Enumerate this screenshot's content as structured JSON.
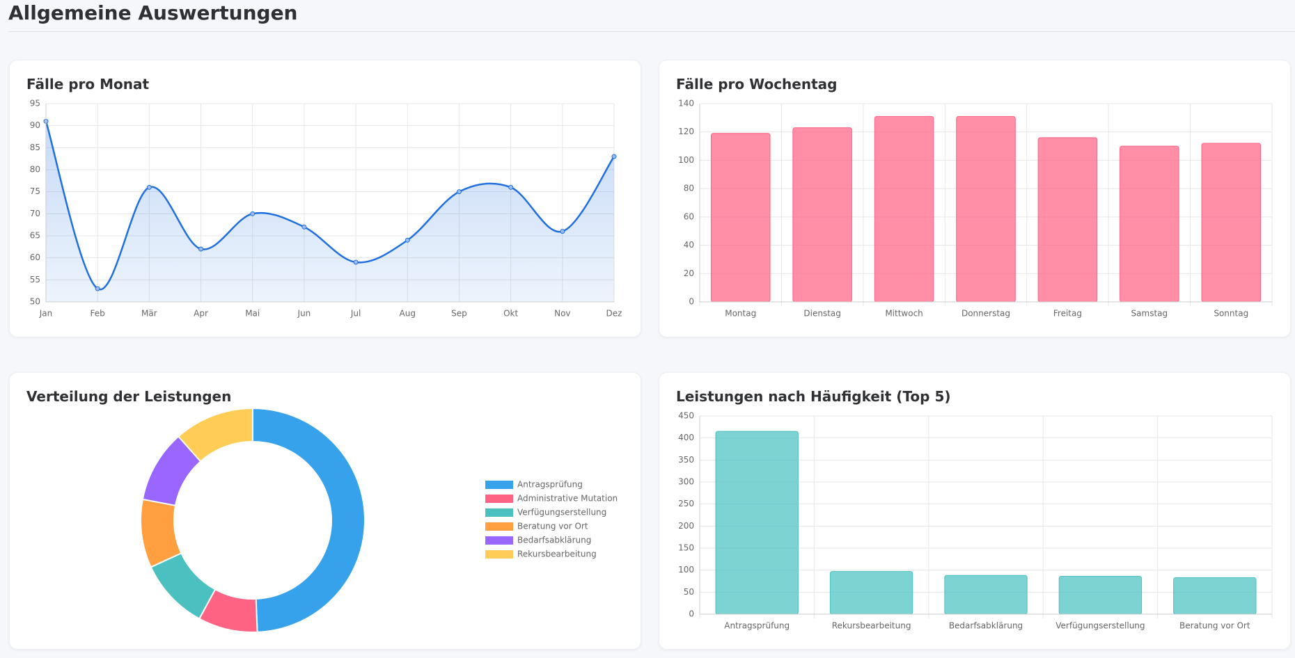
{
  "page_title": "Allgemeine Auswertungen",
  "chart_data": [
    {
      "type": "line",
      "title": "Fälle pro Monat",
      "categories": [
        "Jan",
        "Feb",
        "Mär",
        "Apr",
        "Mai",
        "Jun",
        "Jul",
        "Aug",
        "Sep",
        "Okt",
        "Nov",
        "Dez"
      ],
      "values": [
        91,
        53,
        76,
        62,
        70,
        67,
        59,
        64,
        75,
        76,
        66,
        83
      ],
      "color": "#1f6fe0",
      "ylim": [
        50,
        95
      ],
      "yticks": [
        50,
        55,
        60,
        65,
        70,
        75,
        80,
        85,
        90,
        95
      ],
      "grid": true
    },
    {
      "type": "bar",
      "title": "Fälle pro Wochentag",
      "categories": [
        "Montag",
        "Dienstag",
        "Mittwoch",
        "Donnerstag",
        "Freitag",
        "Samstag",
        "Sonntag"
      ],
      "values": [
        119,
        123,
        131,
        131,
        116,
        110,
        112
      ],
      "color": "#ff6384",
      "ylim": [
        0,
        140
      ],
      "yticks": [
        0,
        20,
        40,
        60,
        80,
        100,
        120,
        140
      ],
      "grid": true
    },
    {
      "type": "doughnut",
      "title": "Verteilung der Leistungen",
      "categories": [
        "Antragsprüfung",
        "Administrative Mutation",
        "Verfügungserstellung",
        "Beratung vor Ort",
        "Bedarfsabklärung",
        "Rekursbearbeitung"
      ],
      "values": [
        415,
        72,
        86,
        83,
        88,
        97
      ],
      "colors": [
        "#36a2eb",
        "#ff6384",
        "#4bc0c0",
        "#ff9f40",
        "#9966ff",
        "#ffcd56"
      ]
    },
    {
      "type": "bar",
      "title": "Leistungen nach Häufigkeit (Top 5)",
      "categories": [
        "Antragsprüfung",
        "Rekursbearbeitung",
        "Bedarfsabklärung",
        "Verfügungserstellung",
        "Beratung vor Ort"
      ],
      "values": [
        415,
        97,
        88,
        86,
        83
      ],
      "color": "#4bc0c0",
      "ylim": [
        0,
        450
      ],
      "yticks": [
        0,
        50,
        100,
        150,
        200,
        250,
        300,
        350,
        400,
        450
      ],
      "grid": true
    }
  ]
}
